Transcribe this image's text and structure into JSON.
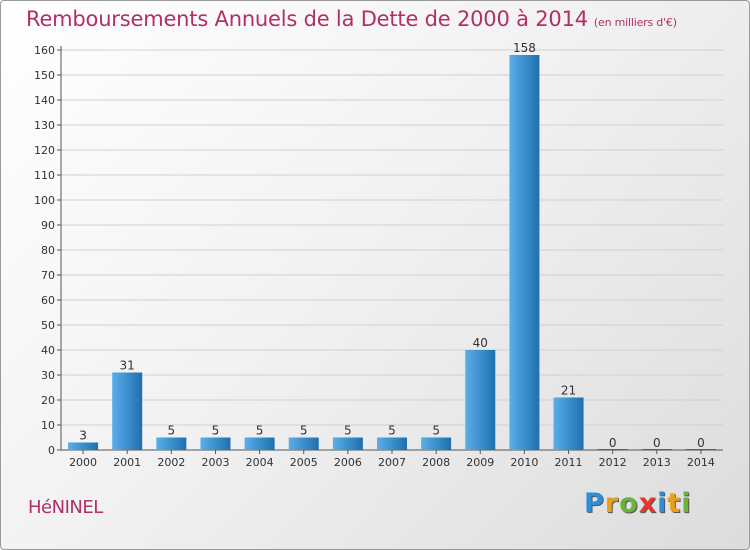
{
  "title": "Remboursements Annuels de la Dette de 2000 à 2014",
  "unit_note": "(en milliers d'€)",
  "commune": "HéNINEL",
  "logo": {
    "text": "Proxiti",
    "letters": [
      {
        "ch": "P",
        "color": "#2a8fd4"
      },
      {
        "ch": "r",
        "color": "#e8a11c"
      },
      {
        "ch": "o",
        "color": "#6cb33e"
      },
      {
        "ch": "x",
        "color": "#e03a2f"
      },
      {
        "ch": "i",
        "color": "#2a8fd4"
      },
      {
        "ch": "t",
        "color": "#e8a11c"
      },
      {
        "ch": "i",
        "color": "#6cb33e"
      }
    ]
  },
  "colors": {
    "title": "#b0306a",
    "bar_light": "#5aaeea",
    "bar_dark": "#1f6fae",
    "grid": "#d0d0d0"
  },
  "chart_data": {
    "type": "bar",
    "title": "Remboursements Annuels de la Dette de 2000 à 2014",
    "categories": [
      "2000",
      "2001",
      "2002",
      "2003",
      "2004",
      "2005",
      "2006",
      "2007",
      "2008",
      "2009",
      "2010",
      "2011",
      "2012",
      "2013",
      "2014"
    ],
    "values": [
      3,
      31,
      5,
      5,
      5,
      5,
      5,
      5,
      5,
      40,
      158,
      21,
      0,
      0,
      0
    ],
    "ylim": [
      0,
      160
    ],
    "yticks": [
      0,
      10,
      20,
      30,
      40,
      50,
      60,
      70,
      80,
      90,
      100,
      110,
      120,
      130,
      140,
      150,
      160
    ],
    "grid": true,
    "legend": "none",
    "data_labels": true
  }
}
